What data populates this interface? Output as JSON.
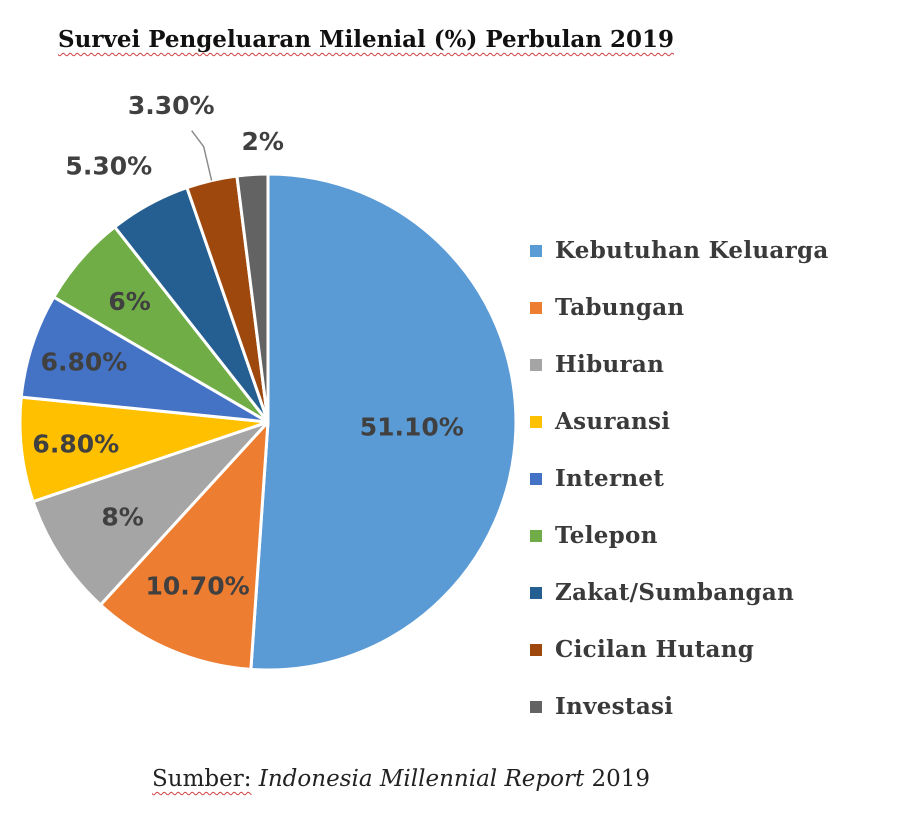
{
  "title": "Survei Pengeluaran Milenial (%) Perbulan 2019",
  "source": {
    "prefix": "Sumber:",
    "report": "Indonesia Millennial Report",
    "year": "2019"
  },
  "chart_data": {
    "type": "pie",
    "title": "Survei Pengeluaran Milenial (%) Perbulan 2019",
    "legend_position": "right",
    "start": "12 o'clock, clockwise",
    "categories": [
      "Kebutuhan Keluarga",
      "Tabungan",
      "Hiburan",
      "Asuransi",
      "Internet",
      "Telepon",
      "Zakat/Sumbangan",
      "Cicilan Hutang",
      "Investasi"
    ],
    "values": [
      51.1,
      10.7,
      8,
      6.8,
      6.8,
      6,
      5.3,
      3.3,
      2
    ],
    "data_labels": [
      "51.10%",
      "10.70%",
      "8%",
      "6.80%",
      "6.80%",
      "6%",
      "5.30%",
      "3.30%",
      "2%"
    ],
    "colors": [
      "#5b9bd5",
      "#ed7d31",
      "#a5a5a5",
      "#ffc000",
      "#4472c4",
      "#70ad47",
      "#255e91",
      "#9e480e",
      "#636363"
    ]
  }
}
